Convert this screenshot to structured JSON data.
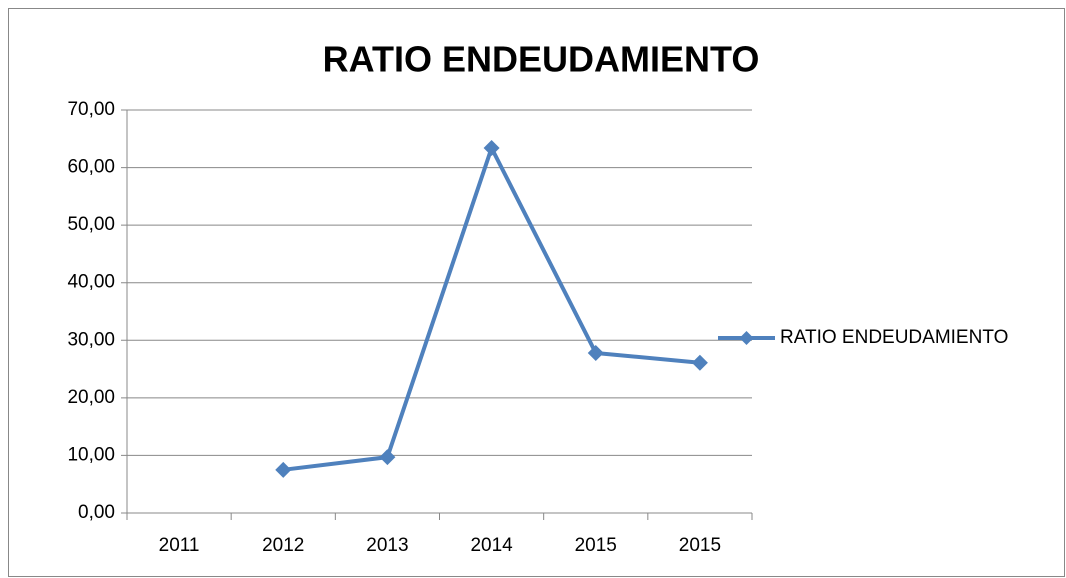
{
  "chart_data": {
    "type": "line",
    "title": "RATIO ENDEUDAMIENTO",
    "categories": [
      "2011",
      "2012",
      "2013",
      "2014",
      "2015",
      "2015"
    ],
    "series": [
      {
        "name": "RATIO ENDEUDAMIENTO",
        "color": "#4f81bd",
        "values": [
          null,
          7.5,
          9.7,
          63.4,
          27.8,
          26.1
        ]
      }
    ],
    "ylim": [
      0,
      70
    ],
    "yticks": [
      {
        "value": 0,
        "label": "0,00"
      },
      {
        "value": 10,
        "label": "10,00"
      },
      {
        "value": 20,
        "label": "20,00"
      },
      {
        "value": 30,
        "label": "30,00"
      },
      {
        "value": 40,
        "label": "40,00"
      },
      {
        "value": 50,
        "label": "50,00"
      },
      {
        "value": 60,
        "label": "60,00"
      },
      {
        "value": 70,
        "label": "70,00"
      }
    ],
    "grid": true,
    "legend": "right"
  }
}
